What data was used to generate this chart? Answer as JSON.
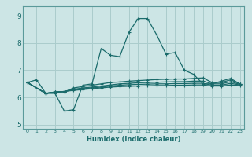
{
  "background_color": "#cce5e5",
  "grid_color": "#aacccc",
  "line_color": "#1a6b6b",
  "xlim": [
    -0.5,
    23.5
  ],
  "ylim": [
    4.85,
    9.35
  ],
  "yticks": [
    5,
    6,
    7,
    8,
    9
  ],
  "xticks": [
    0,
    1,
    2,
    3,
    4,
    5,
    6,
    7,
    8,
    9,
    10,
    11,
    12,
    13,
    14,
    15,
    16,
    17,
    18,
    19,
    20,
    21,
    22,
    23
  ],
  "xlabel": "Humidex (Indice chaleur)",
  "series1_x": [
    0,
    1,
    2,
    3,
    4,
    5,
    6,
    7,
    8,
    9,
    10,
    11,
    12,
    13,
    14,
    15,
    16,
    17,
    18,
    19,
    20,
    21,
    22,
    23
  ],
  "series1_y": [
    6.55,
    6.65,
    6.15,
    6.15,
    5.5,
    5.55,
    6.45,
    6.5,
    7.8,
    7.55,
    7.5,
    8.4,
    8.9,
    8.9,
    8.3,
    7.6,
    7.65,
    7.0,
    6.85,
    6.5,
    6.5,
    6.6,
    6.7,
    6.5
  ],
  "series2_x": [
    0,
    2,
    3,
    4,
    5,
    6,
    7,
    8,
    9,
    10,
    11,
    12,
    13,
    14,
    15,
    16,
    17,
    18,
    19,
    20,
    21,
    22,
    23
  ],
  "series2_y": [
    6.55,
    6.15,
    6.2,
    6.2,
    6.35,
    6.4,
    6.45,
    6.5,
    6.55,
    6.57,
    6.6,
    6.62,
    6.64,
    6.66,
    6.67,
    6.68,
    6.68,
    6.7,
    6.72,
    6.55,
    6.55,
    6.65,
    6.5
  ],
  "series3_x": [
    0,
    2,
    3,
    4,
    5,
    6,
    7,
    8,
    9,
    10,
    11,
    12,
    13,
    14,
    15,
    16,
    17,
    18,
    19,
    20,
    21,
    22,
    23
  ],
  "series3_y": [
    6.55,
    6.15,
    6.2,
    6.22,
    6.3,
    6.35,
    6.38,
    6.42,
    6.46,
    6.5,
    6.52,
    6.54,
    6.55,
    6.56,
    6.57,
    6.58,
    6.58,
    6.6,
    6.6,
    6.5,
    6.5,
    6.58,
    6.48
  ],
  "series4_x": [
    0,
    2,
    3,
    4,
    5,
    6,
    7,
    8,
    9,
    10,
    11,
    12,
    13,
    14,
    15,
    16,
    17,
    18,
    19,
    20,
    21,
    22,
    23
  ],
  "series4_y": [
    6.55,
    6.15,
    6.2,
    6.22,
    6.28,
    6.32,
    6.35,
    6.38,
    6.42,
    6.45,
    6.47,
    6.48,
    6.49,
    6.5,
    6.5,
    6.51,
    6.51,
    6.52,
    6.52,
    6.45,
    6.45,
    6.52,
    6.46
  ],
  "series5_x": [
    0,
    2,
    3,
    4,
    5,
    6,
    7,
    8,
    9,
    10,
    11,
    12,
    13,
    14,
    15,
    16,
    17,
    18,
    19,
    20,
    21,
    22,
    23
  ],
  "series5_y": [
    6.55,
    6.15,
    6.2,
    6.22,
    6.26,
    6.29,
    6.32,
    6.35,
    6.38,
    6.4,
    6.41,
    6.42,
    6.43,
    6.44,
    6.44,
    6.45,
    6.45,
    6.46,
    6.46,
    6.42,
    6.42,
    6.46,
    6.44
  ]
}
